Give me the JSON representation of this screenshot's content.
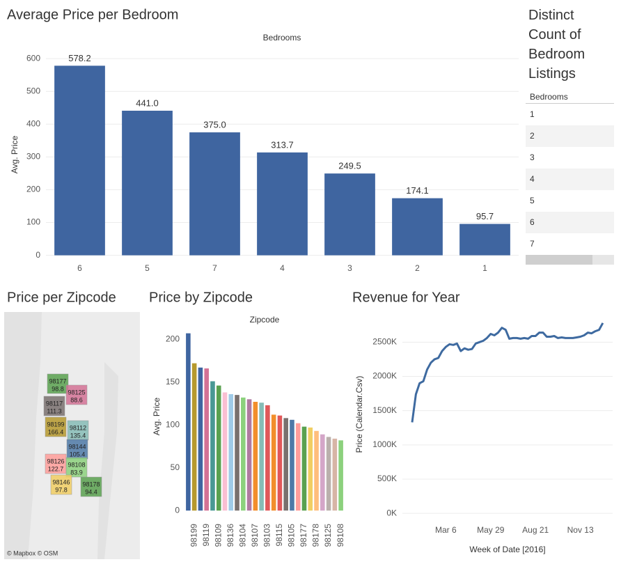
{
  "chart_data": [
    {
      "type": "bar",
      "title": "Average Price per Bedroom",
      "x_label": "Bedrooms",
      "y_label": "Avg. Price",
      "categories": [
        "6",
        "5",
        "7",
        "4",
        "3",
        "2",
        "1"
      ],
      "values": [
        578.2,
        441.0,
        375.0,
        313.7,
        249.5,
        174.1,
        95.7
      ],
      "value_labels": [
        "578.2",
        "441.0",
        "375.0",
        "313.7",
        "249.5",
        "174.1",
        "95.7"
      ],
      "color": "#3f65a0",
      "ylim": [
        -20,
        630
      ],
      "yticks": [
        0,
        100,
        200,
        300,
        400,
        500,
        600
      ],
      "grid": true
    },
    {
      "type": "bar",
      "title": "Price by Zipcode",
      "x_label": "Zipcode",
      "y_label": "Avg. Price",
      "categories": [
        null,
        "98199",
        null,
        "98119",
        null,
        "98109",
        null,
        "98136",
        null,
        "98104",
        null,
        "98107",
        null,
        "98103",
        null,
        "98115",
        null,
        "98105",
        null,
        "98177",
        null,
        "98178",
        null,
        "98125",
        null,
        "98108"
      ],
      "values": [
        207,
        172,
        167,
        166,
        151,
        146,
        138,
        136,
        135,
        132,
        130,
        127,
        126,
        123,
        112,
        111,
        108,
        106,
        102,
        98,
        97,
        93,
        89,
        86,
        84,
        82
      ],
      "colors": [
        "#3f65a0",
        "#b6992d",
        "#3f65a0",
        "#d37295",
        "#499894",
        "#59a14f",
        "#fabfd2",
        "#a0cbe8",
        "#79706e",
        "#8cd17d",
        "#b07aa1",
        "#f28e2b",
        "#86bcb6",
        "#e15759",
        "#f28e2b",
        "#e15759",
        "#79706e",
        "#4e79a7",
        "#ff9d9a",
        "#59a14f",
        "#f1ce63",
        "#ffbe7d",
        "#d4a6c8",
        "#bab0ac",
        "#d7b5a6",
        "#8cd17d"
      ],
      "ylim": [
        -8,
        214
      ],
      "yticks": [
        0,
        50,
        100,
        150,
        200
      ],
      "grid": false
    },
    {
      "type": "line",
      "title": "Revenue for Year",
      "x_label": "Week of Date [2016]",
      "y_label": "Price (Calendar.Csv)",
      "categories": [
        null,
        null,
        null,
        null,
        null,
        null,
        null,
        null,
        null,
        "Mar 6",
        null,
        null,
        null,
        null,
        null,
        null,
        null,
        null,
        null,
        null,
        null,
        "May 29",
        null,
        null,
        null,
        null,
        null,
        null,
        null,
        null,
        null,
        null,
        null,
        "Aug 21",
        null,
        null,
        null,
        null,
        null,
        null,
        null,
        null,
        null,
        null,
        null,
        "Nov 13",
        null,
        null,
        null,
        null,
        null,
        null
      ],
      "values": [
        1330000,
        1740000,
        1900000,
        1930000,
        2100000,
        2200000,
        2250000,
        2270000,
        2370000,
        2430000,
        2470000,
        2460000,
        2480000,
        2370000,
        2410000,
        2390000,
        2400000,
        2480000,
        2500000,
        2520000,
        2560000,
        2620000,
        2600000,
        2640000,
        2710000,
        2680000,
        2550000,
        2560000,
        2560000,
        2550000,
        2560000,
        2550000,
        2590000,
        2590000,
        2640000,
        2640000,
        2580000,
        2580000,
        2590000,
        2560000,
        2570000,
        2560000,
        2560000,
        2560000,
        2570000,
        2580000,
        2600000,
        2640000,
        2630000,
        2660000,
        2680000,
        2780000
      ],
      "color": "#3e6aa0",
      "ylim": [
        -110000,
        2900000
      ],
      "yticks": [
        {
          "value": 0,
          "label": "0K"
        },
        {
          "value": 500000,
          "label": "500K"
        },
        {
          "value": 1000000,
          "label": "1000K"
        },
        {
          "value": 1500000,
          "label": "1500K"
        },
        {
          "value": 2000000,
          "label": "2000K"
        },
        {
          "value": 2500000,
          "label": "2500K"
        }
      ],
      "grid": true
    }
  ],
  "map": {
    "title": "Price per Zipcode",
    "attribution": "© Mapbox  © OSM",
    "regions": [
      {
        "zip": "98177",
        "value": 98.8
      },
      {
        "zip": "98125",
        "value": 88.6
      },
      {
        "zip": "98117",
        "value": 111.3
      },
      {
        "zip": "98199",
        "value": 166.4
      },
      {
        "zip": "98112",
        "value": 135.4
      },
      {
        "zip": "98144",
        "value": 105.4
      },
      {
        "zip": "98126",
        "value": 122.7
      },
      {
        "zip": "98108",
        "value": 83.9
      },
      {
        "zip": "98146",
        "value": 97.8
      },
      {
        "zip": "98178",
        "value": 94.4
      }
    ]
  },
  "table": {
    "title": "Distinct Count of Bedroom Listings",
    "header": "Bedrooms",
    "rows": [
      "1",
      "2",
      "3",
      "4",
      "5",
      "6",
      "7"
    ]
  }
}
